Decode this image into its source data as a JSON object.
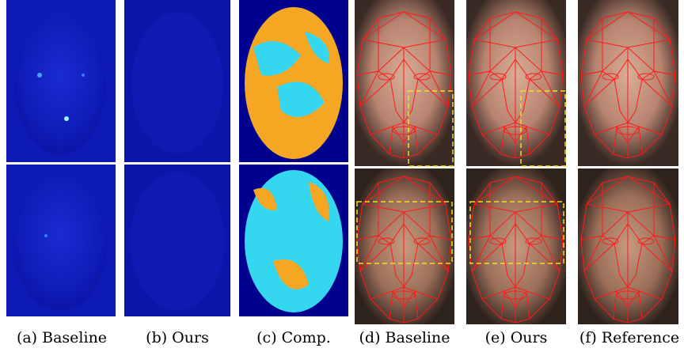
{
  "captions": [
    "(a) Baseline",
    "(b) Ours",
    "(c) Comp.",
    "(d) Baseline",
    "(e) Ours",
    "(f) Reference"
  ]
}
